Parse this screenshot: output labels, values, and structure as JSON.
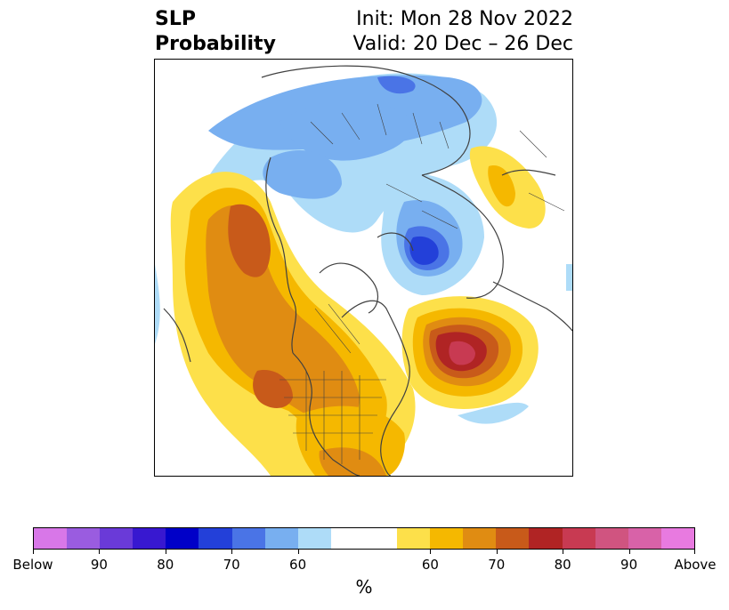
{
  "title": {
    "left_line1": "SLP",
    "left_line2": "Probability",
    "right_line1": "Init: Mon 28 Nov 2022",
    "right_line2": "Valid: 20 Dec – 26 Dec"
  },
  "colorbar": {
    "colors": [
      "#d877e8",
      "#9a5ce0",
      "#6a3ad8",
      "#3818d0",
      "#0000c8",
      "#2340d9",
      "#4a74e6",
      "#78aff0",
      "#aedcf8",
      "#ffffff",
      "#ffffff",
      "#fde04a",
      "#f5b800",
      "#e08c12",
      "#c85a1a",
      "#b02424",
      "#c83a52",
      "#d05480",
      "#d862a8",
      "#e87ae0"
    ],
    "labels": [
      "Below",
      "90",
      "80",
      "70",
      "60",
      "60",
      "70",
      "80",
      "90",
      "Above"
    ],
    "unit": "%"
  },
  "map": {
    "description_colors": {
      "below_strong": "#2340d9",
      "below_mid": "#78aff0",
      "below_light": "#aedcf8",
      "above_light": "#fde04a",
      "above_mid": "#f5b800",
      "above_strong": "#e08c12",
      "above_stronger": "#c85a1a",
      "above_red": "#b02424",
      "above_pink": "#c83a52"
    }
  }
}
